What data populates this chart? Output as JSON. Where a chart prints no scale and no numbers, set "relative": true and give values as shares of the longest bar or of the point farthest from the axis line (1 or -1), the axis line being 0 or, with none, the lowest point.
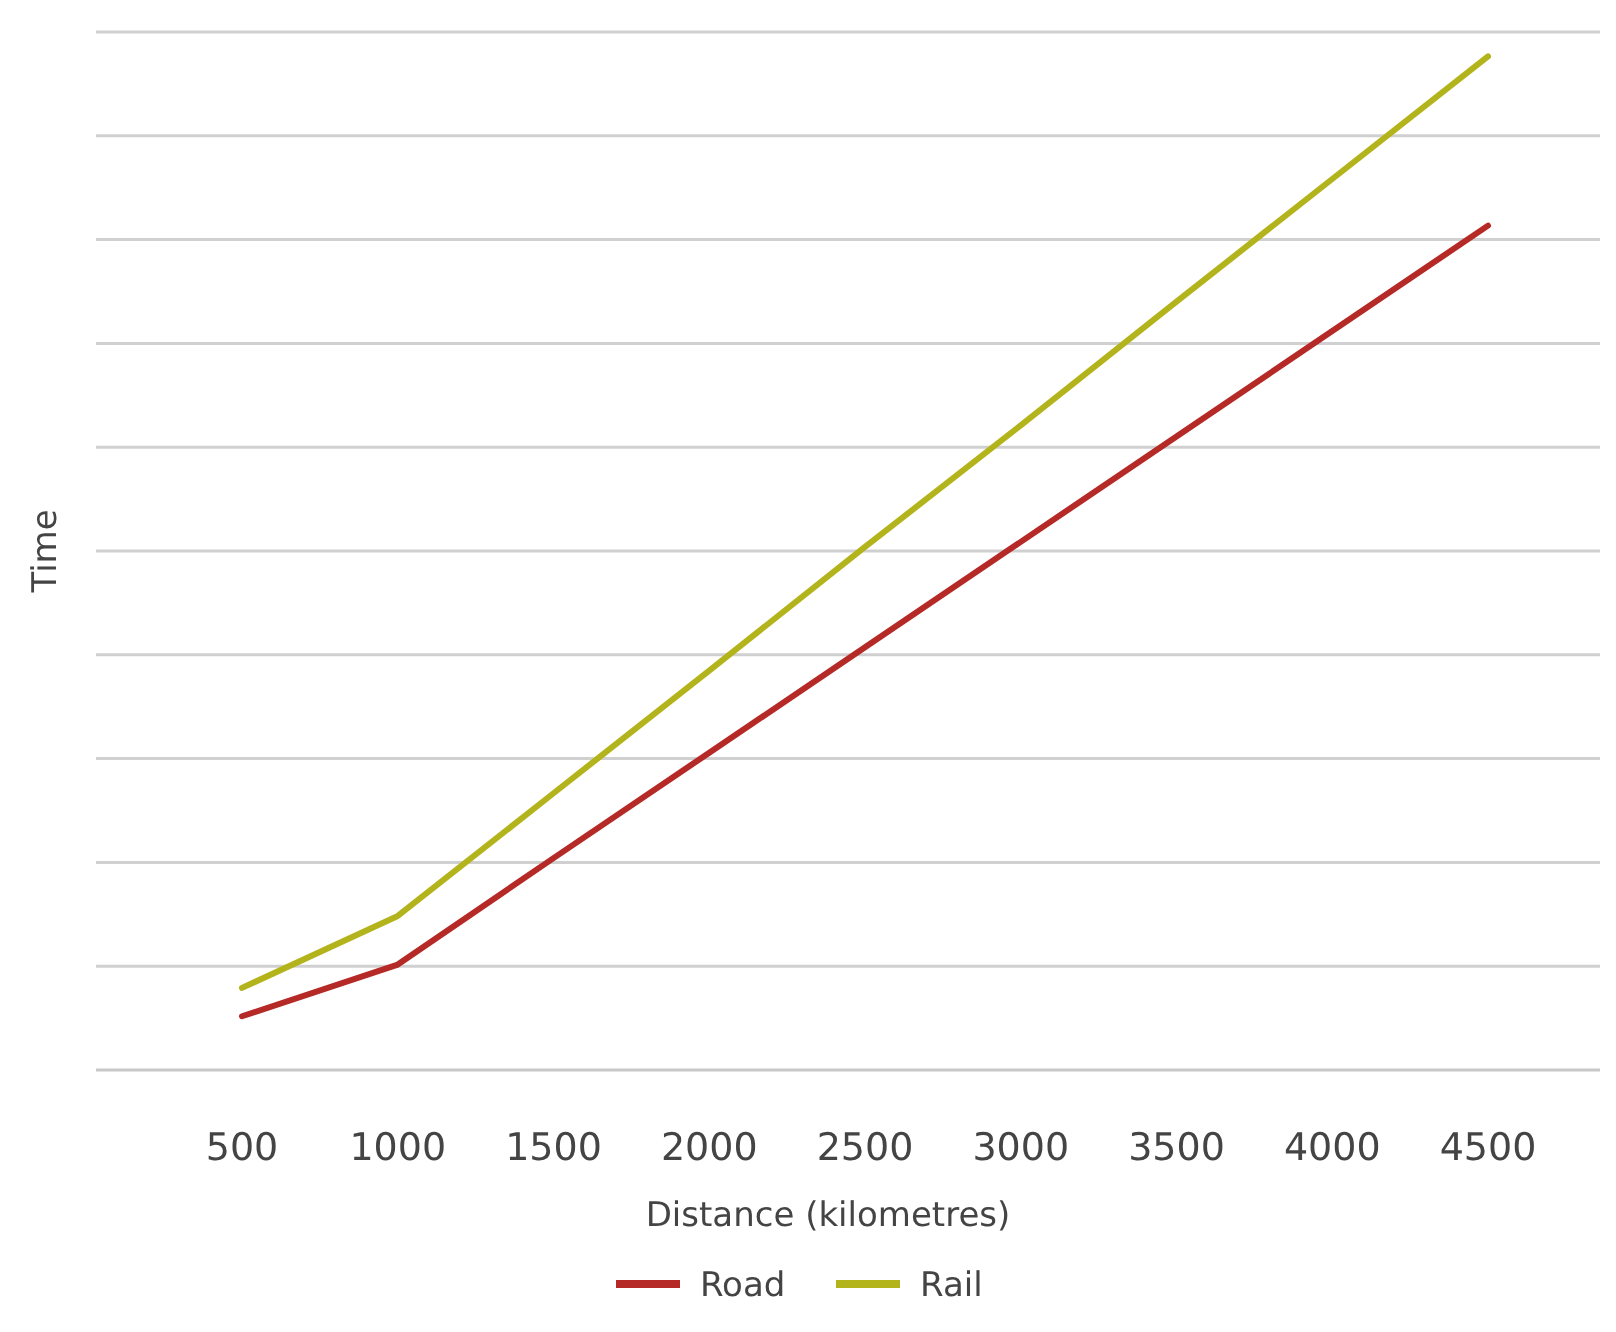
{
  "chart_data": {
    "type": "line",
    "relative": true,
    "xlabel": "Distance (kilometres)",
    "ylabel": "Time",
    "categories": [
      "500",
      "1000",
      "1500",
      "2000",
      "2500",
      "3000",
      "3500",
      "4000",
      "4500"
    ],
    "series": [
      {
        "name": "Road",
        "color": "#b52a26",
        "values": [
          0.053,
          0.104,
          0.209,
          0.313,
          0.417,
          0.521,
          0.625,
          0.729,
          0.833
        ]
      },
      {
        "name": "Rail",
        "color": "#b3b41c",
        "values": [
          0.081,
          0.152,
          0.273,
          0.394,
          0.516,
          0.636,
          0.758,
          0.879,
          1.0
        ]
      }
    ],
    "grid": "y",
    "legend": "bottom",
    "marker": "none",
    "line_style": "solid"
  }
}
